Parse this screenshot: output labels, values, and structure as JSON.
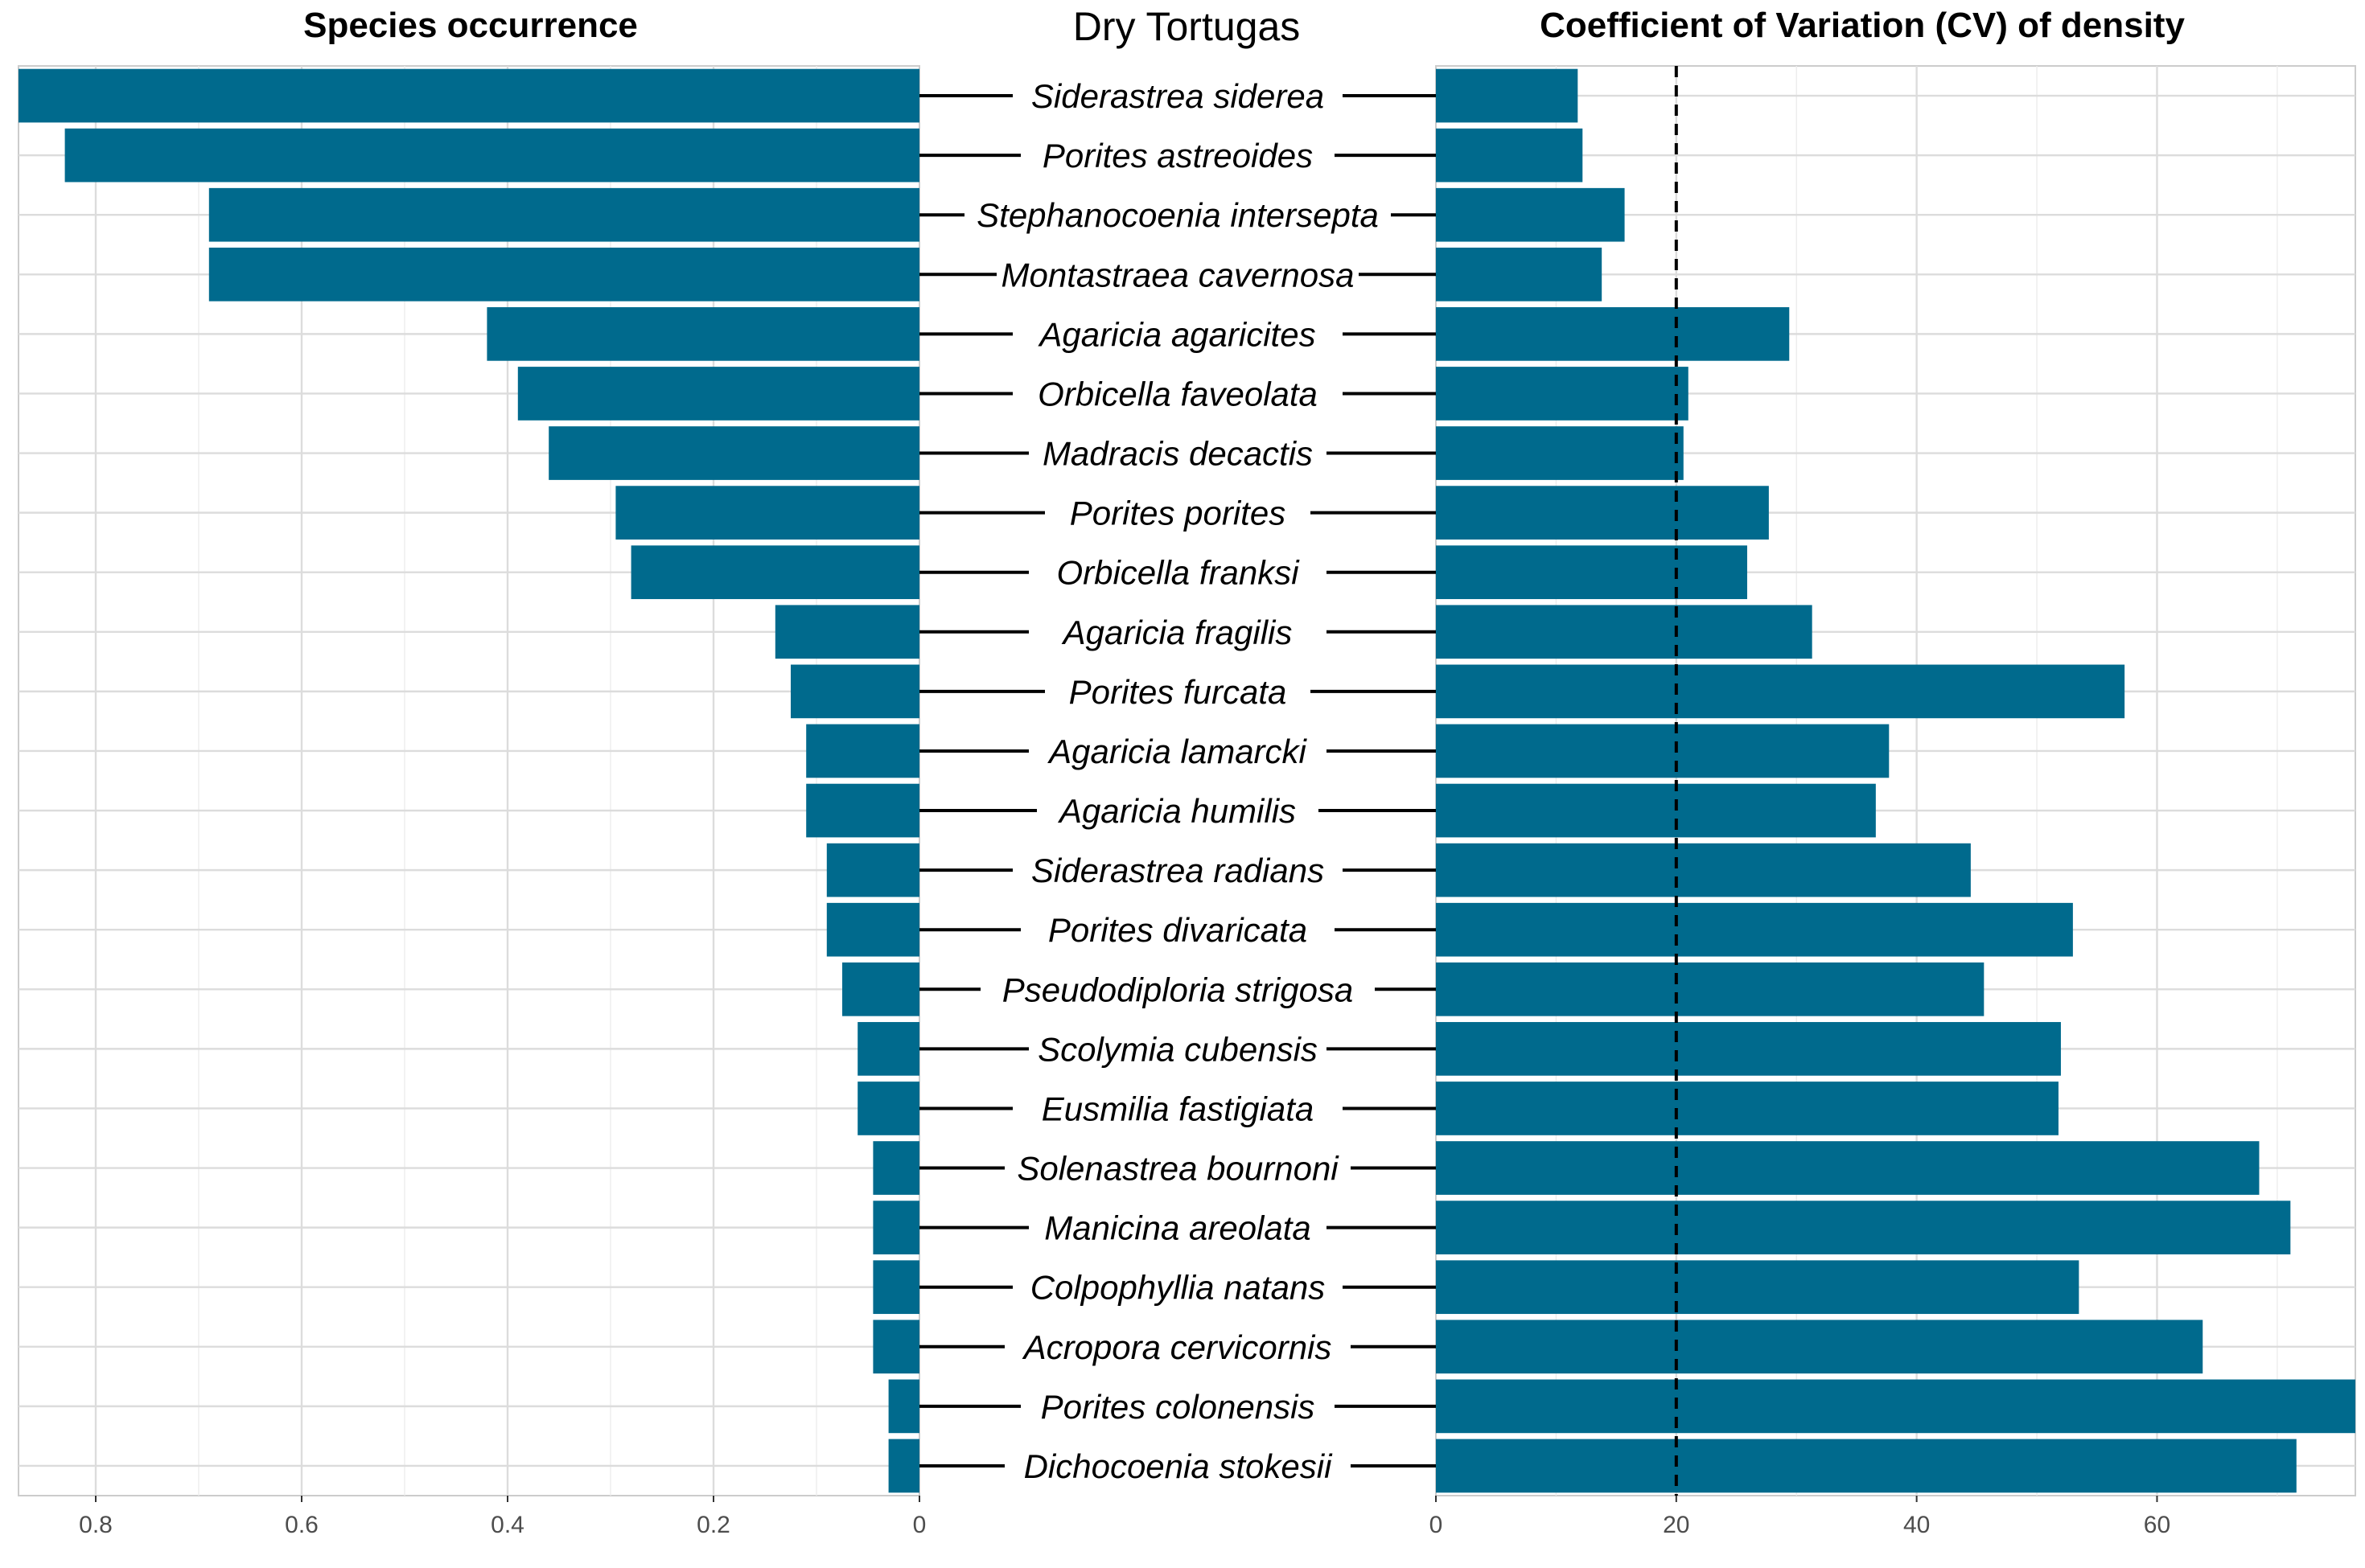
{
  "titles": {
    "left": "Species occurrence",
    "center": "Dry Tortugas",
    "right": "Coefficient of Variation (CV) of density"
  },
  "chart_data": [
    {
      "type": "bar",
      "orientation": "horizontal",
      "direction": "reversed",
      "title": "Species occurrence",
      "xlim": [
        0,
        0.875
      ],
      "xticks": [
        "0.8",
        "0.6",
        "0.4",
        "0.2",
        "0"
      ],
      "grid": true,
      "bar_color": "#006a8d",
      "categories": [
        "Siderastrea siderea",
        "Porites astreoides",
        "Stephanocoenia intersepta",
        "Montastraea cavernosa",
        "Agaricia agaricites",
        "Orbicella faveolata",
        "Madracis decactis",
        "Porites porites",
        "Orbicella franksi",
        "Agaricia fragilis",
        "Porites furcata",
        "Agaricia lamarcki",
        "Agaricia humilis",
        "Siderastrea radians",
        "Porites divaricata",
        "Pseudodiploria strigosa",
        "Scolymia cubensis",
        "Eusmilia fastigiata",
        "Solenastrea bournoni",
        "Manicina areolata",
        "Colpophyllia natans",
        "Acropora cervicornis",
        "Porites colonensis",
        "Dichocoenia stokesii"
      ],
      "values": [
        0.875,
        0.83,
        0.69,
        0.69,
        0.42,
        0.39,
        0.36,
        0.295,
        0.28,
        0.14,
        0.125,
        0.11,
        0.11,
        0.09,
        0.09,
        0.075,
        0.06,
        0.06,
        0.045,
        0.045,
        0.045,
        0.045,
        0.03,
        0.03
      ]
    },
    {
      "type": "bar",
      "orientation": "horizontal",
      "title": "Coefficient of Variation (CV) of density",
      "xlim": [
        0,
        76.5
      ],
      "xticks": [
        "0",
        "20",
        "40",
        "60"
      ],
      "grid": true,
      "bar_color": "#006a8d",
      "reference_line": {
        "x": 20,
        "style": "dashed",
        "color": "#000000"
      },
      "categories": [
        "Siderastrea siderea",
        "Porites astreoides",
        "Stephanocoenia intersepta",
        "Montastraea cavernosa",
        "Agaricia agaricites",
        "Orbicella faveolata",
        "Madracis decactis",
        "Porites porites",
        "Orbicella franksi",
        "Agaricia fragilis",
        "Porites furcata",
        "Agaricia lamarcki",
        "Agaricia humilis",
        "Siderastrea radians",
        "Porites divaricata",
        "Pseudodiploria strigosa",
        "Scolymia cubensis",
        "Eusmilia fastigiata",
        "Solenastrea bournoni",
        "Manicina areolata",
        "Colpophyllia natans",
        "Acropora cervicornis",
        "Porites colonensis",
        "Dichocoenia stokesii"
      ],
      "values": [
        11.8,
        12.2,
        15.7,
        13.8,
        29.4,
        21.0,
        20.6,
        27.7,
        25.9,
        31.3,
        57.3,
        37.7,
        36.6,
        44.5,
        53.0,
        45.6,
        52.0,
        51.8,
        68.5,
        71.1,
        53.5,
        63.8,
        76.5,
        71.6
      ]
    }
  ]
}
